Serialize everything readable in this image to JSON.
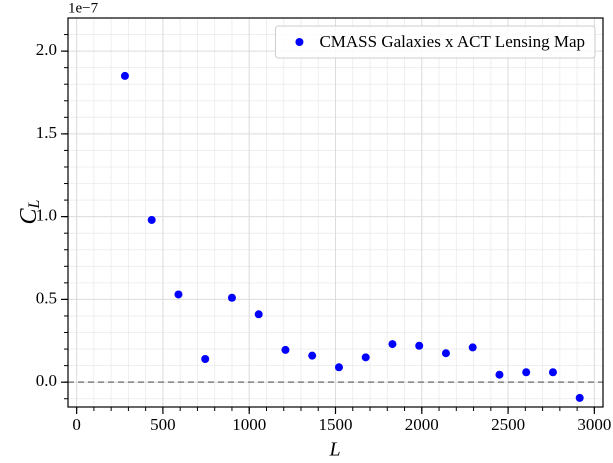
{
  "chart_data": {
    "type": "scatter",
    "xlabel": "L",
    "ylabel": "C",
    "ylabel_subscript": "L",
    "y_offset_label": "1e−7",
    "xlim": [
      -50,
      3050
    ],
    "ylim": [
      -0.15,
      2.2
    ],
    "xticks": [
      0,
      500,
      1000,
      1500,
      2000,
      2500,
      3000
    ],
    "yticks": [
      {
        "value": 0,
        "label": "0.0"
      },
      {
        "value": 0.5,
        "label": "0.5"
      },
      {
        "value": 1,
        "label": "1.0"
      },
      {
        "value": 1.5,
        "label": "1.5"
      },
      {
        "value": 2,
        "label": "2.0"
      }
    ],
    "grid": true,
    "legend": "upper right",
    "reference_line": {
      "y": 0,
      "style": "dashed",
      "color": "#808080"
    },
    "series": [
      {
        "name": "CMASS Galaxies x ACT Lensing Map",
        "color": "#0000ff",
        "x": [
          280,
          435,
          590,
          745,
          900,
          1055,
          1210,
          1365,
          1520,
          1675,
          1830,
          1985,
          2140,
          2295,
          2450,
          2605,
          2760,
          2915
        ],
        "values": [
          1.85,
          0.98,
          0.53,
          0.14,
          0.51,
          0.41,
          0.195,
          0.16,
          0.09,
          0.15,
          0.23,
          0.22,
          0.175,
          0.21,
          0.045,
          0.06,
          0.06,
          -0.095
        ]
      }
    ]
  }
}
